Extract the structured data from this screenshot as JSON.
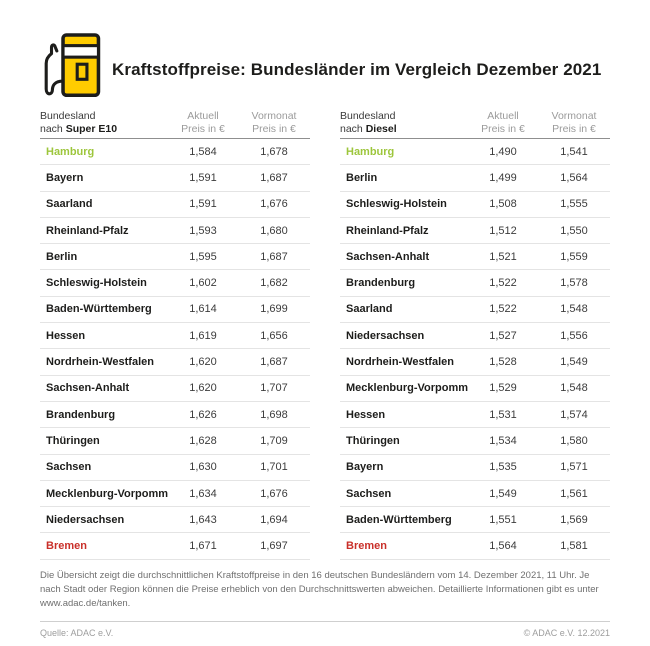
{
  "header": {
    "title": "Kraftstoffpreise: Bundesländer im Vergleich Dezember 2021"
  },
  "colors": {
    "adac_yellow": "#FFCC00",
    "ink": "#1D1D1B",
    "highlight_green": "#9DC63C",
    "highlight_red": "#C92F29"
  },
  "tables": [
    {
      "name": "super-e10",
      "header": {
        "line1": "Bundesland",
        "prefix": "nach",
        "fuel": "Super E10"
      },
      "columns": {
        "current_top": "Aktuell",
        "current_bottom": "Preis in €",
        "previous_top": "Vormonat",
        "previous_bottom": "Preis in €"
      },
      "rows": [
        {
          "state": "Hamburg",
          "current": "1,584",
          "previous": "1,678",
          "highlight": "green"
        },
        {
          "state": "Bayern",
          "current": "1,591",
          "previous": "1,687",
          "highlight": "none"
        },
        {
          "state": "Saarland",
          "current": "1,591",
          "previous": "1,676",
          "highlight": "none"
        },
        {
          "state": "Rheinland-Pfalz",
          "current": "1,593",
          "previous": "1,680",
          "highlight": "none"
        },
        {
          "state": "Berlin",
          "current": "1,595",
          "previous": "1,687",
          "highlight": "none"
        },
        {
          "state": "Schleswig-Holstein",
          "current": "1,602",
          "previous": "1,682",
          "highlight": "none"
        },
        {
          "state": "Baden-Württemberg",
          "current": "1,614",
          "previous": "1,699",
          "highlight": "none"
        },
        {
          "state": "Hessen",
          "current": "1,619",
          "previous": "1,656",
          "highlight": "none"
        },
        {
          "state": "Nordrhein-Westfalen",
          "current": "1,620",
          "previous": "1,687",
          "highlight": "none"
        },
        {
          "state": "Sachsen-Anhalt",
          "current": "1,620",
          "previous": "1,707",
          "highlight": "none"
        },
        {
          "state": "Brandenburg",
          "current": "1,626",
          "previous": "1,698",
          "highlight": "none"
        },
        {
          "state": "Thüringen",
          "current": "1,628",
          "previous": "1,709",
          "highlight": "none"
        },
        {
          "state": "Sachsen",
          "current": "1,630",
          "previous": "1,701",
          "highlight": "none"
        },
        {
          "state": "Mecklenburg-Vorpommern",
          "current": "1,634",
          "previous": "1,676",
          "highlight": "none"
        },
        {
          "state": "Niedersachsen",
          "current": "1,643",
          "previous": "1,694",
          "highlight": "none"
        },
        {
          "state": "Bremen",
          "current": "1,671",
          "previous": "1,697",
          "highlight": "red"
        }
      ]
    },
    {
      "name": "diesel",
      "header": {
        "line1": "Bundesland",
        "prefix": "nach",
        "fuel": "Diesel"
      },
      "columns": {
        "current_top": "Aktuell",
        "current_bottom": "Preis in €",
        "previous_top": "Vormonat",
        "previous_bottom": "Preis in €"
      },
      "rows": [
        {
          "state": "Hamburg",
          "current": "1,490",
          "previous": "1,541",
          "highlight": "green"
        },
        {
          "state": "Berlin",
          "current": "1,499",
          "previous": "1,564",
          "highlight": "none"
        },
        {
          "state": "Schleswig-Holstein",
          "current": "1,508",
          "previous": "1,555",
          "highlight": "none"
        },
        {
          "state": "Rheinland-Pfalz",
          "current": "1,512",
          "previous": "1,550",
          "highlight": "none"
        },
        {
          "state": "Sachsen-Anhalt",
          "current": "1,521",
          "previous": "1,559",
          "highlight": "none"
        },
        {
          "state": "Brandenburg",
          "current": "1,522",
          "previous": "1,578",
          "highlight": "none"
        },
        {
          "state": "Saarland",
          "current": "1,522",
          "previous": "1,548",
          "highlight": "none"
        },
        {
          "state": "Niedersachsen",
          "current": "1,527",
          "previous": "1,556",
          "highlight": "none"
        },
        {
          "state": "Nordrhein-Westfalen",
          "current": "1,528",
          "previous": "1,549",
          "highlight": "none"
        },
        {
          "state": "Mecklenburg-Vorpommern",
          "current": "1,529",
          "previous": "1,548",
          "highlight": "none"
        },
        {
          "state": "Hessen",
          "current": "1,531",
          "previous": "1,574",
          "highlight": "none"
        },
        {
          "state": "Thüringen",
          "current": "1,534",
          "previous": "1,580",
          "highlight": "none"
        },
        {
          "state": "Bayern",
          "current": "1,535",
          "previous": "1,571",
          "highlight": "none"
        },
        {
          "state": "Sachsen",
          "current": "1,549",
          "previous": "1,561",
          "highlight": "none"
        },
        {
          "state": "Baden-Württemberg",
          "current": "1,551",
          "previous": "1,569",
          "highlight": "none"
        },
        {
          "state": "Bremen",
          "current": "1,564",
          "previous": "1,581",
          "highlight": "red"
        }
      ]
    }
  ],
  "footer": {
    "footnote": "Die Übersicht zeigt die durchschnittlichen Kraftstoffpreise in den 16 deutschen Bundesländern vom 14. Dezember 2021, 11 Uhr. Je nach Stadt oder Region können die Preise erheblich von den Durchschnittswerten abweichen. Detaillierte Informationen gibt es unter www.adac.de/tanken.",
    "source": "Quelle: ADAC e.V.",
    "copyright": "© ADAC e.V. 12.2021"
  },
  "chart_data": [
    {
      "type": "table",
      "title": "Bundesland nach Super E10",
      "columns": [
        "Bundesland",
        "Aktuell Preis in €",
        "Vormonat Preis in €"
      ],
      "rows": [
        [
          "Hamburg",
          1.584,
          1.678
        ],
        [
          "Bayern",
          1.591,
          1.687
        ],
        [
          "Saarland",
          1.591,
          1.676
        ],
        [
          "Rheinland-Pfalz",
          1.593,
          1.68
        ],
        [
          "Berlin",
          1.595,
          1.687
        ],
        [
          "Schleswig-Holstein",
          1.602,
          1.682
        ],
        [
          "Baden-Württemberg",
          1.614,
          1.699
        ],
        [
          "Hessen",
          1.619,
          1.656
        ],
        [
          "Nordrhein-Westfalen",
          1.62,
          1.687
        ],
        [
          "Sachsen-Anhalt",
          1.62,
          1.707
        ],
        [
          "Brandenburg",
          1.626,
          1.698
        ],
        [
          "Thüringen",
          1.628,
          1.709
        ],
        [
          "Sachsen",
          1.63,
          1.701
        ],
        [
          "Mecklenburg-Vorpommern",
          1.634,
          1.676
        ],
        [
          "Niedersachsen",
          1.643,
          1.694
        ],
        [
          "Bremen",
          1.671,
          1.697
        ]
      ]
    },
    {
      "type": "table",
      "title": "Bundesland nach Diesel",
      "columns": [
        "Bundesland",
        "Aktuell Preis in €",
        "Vormonat Preis in €"
      ],
      "rows": [
        [
          "Hamburg",
          1.49,
          1.541
        ],
        [
          "Berlin",
          1.499,
          1.564
        ],
        [
          "Schleswig-Holstein",
          1.508,
          1.555
        ],
        [
          "Rheinland-Pfalz",
          1.512,
          1.55
        ],
        [
          "Sachsen-Anhalt",
          1.521,
          1.559
        ],
        [
          "Brandenburg",
          1.522,
          1.578
        ],
        [
          "Saarland",
          1.522,
          1.548
        ],
        [
          "Niedersachsen",
          1.527,
          1.556
        ],
        [
          "Nordrhein-Westfalen",
          1.528,
          1.549
        ],
        [
          "Mecklenburg-Vorpommern",
          1.529,
          1.548
        ],
        [
          "Hessen",
          1.531,
          1.574
        ],
        [
          "Thüringen",
          1.534,
          1.58
        ],
        [
          "Bayern",
          1.535,
          1.571
        ],
        [
          "Sachsen",
          1.549,
          1.561
        ],
        [
          "Baden-Württemberg",
          1.551,
          1.569
        ],
        [
          "Bremen",
          1.564,
          1.581
        ]
      ]
    }
  ]
}
